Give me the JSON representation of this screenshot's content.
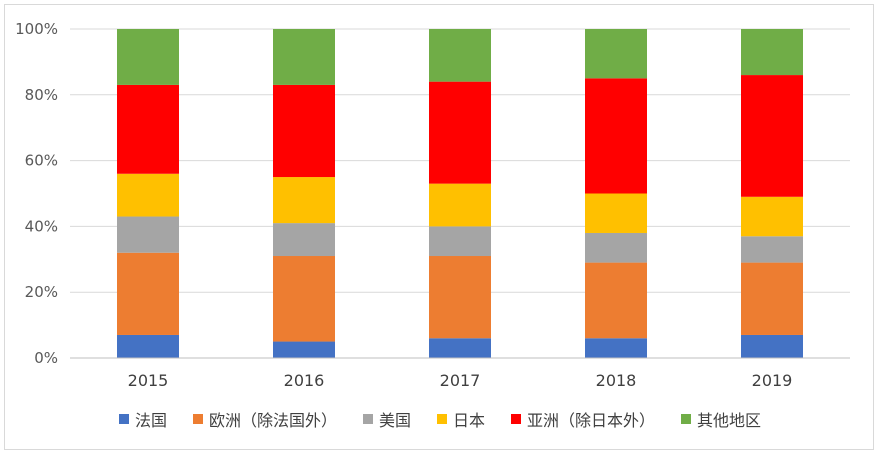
{
  "chart_data": {
    "type": "bar",
    "stacked": true,
    "percent": true,
    "categories": [
      "2015",
      "2016",
      "2017",
      "2018",
      "2019"
    ],
    "y_ticks": [
      "0%",
      "20%",
      "40%",
      "60%",
      "80%",
      "100%"
    ],
    "ylim": [
      0,
      100
    ],
    "grid": true,
    "legend_position": "bottom",
    "series": [
      {
        "name": "法国",
        "color": "#4472C4",
        "values": [
          7,
          5,
          6,
          6,
          7
        ]
      },
      {
        "name": "欧洲（除法国外）",
        "color": "#ED7D31",
        "values": [
          25,
          26,
          25,
          23,
          22
        ]
      },
      {
        "name": "美国",
        "color": "#A5A5A5",
        "values": [
          11,
          10,
          9,
          9,
          8
        ]
      },
      {
        "name": "日本",
        "color": "#FFC000",
        "values": [
          13,
          14,
          13,
          12,
          12
        ]
      },
      {
        "name": "亚洲（除日本外）",
        "color": "#FF0000",
        "values": [
          27,
          28,
          31,
          35,
          37
        ]
      },
      {
        "name": "其他地区",
        "color": "#70AD47",
        "values": [
          17,
          17,
          16,
          15,
          14
        ]
      }
    ]
  }
}
